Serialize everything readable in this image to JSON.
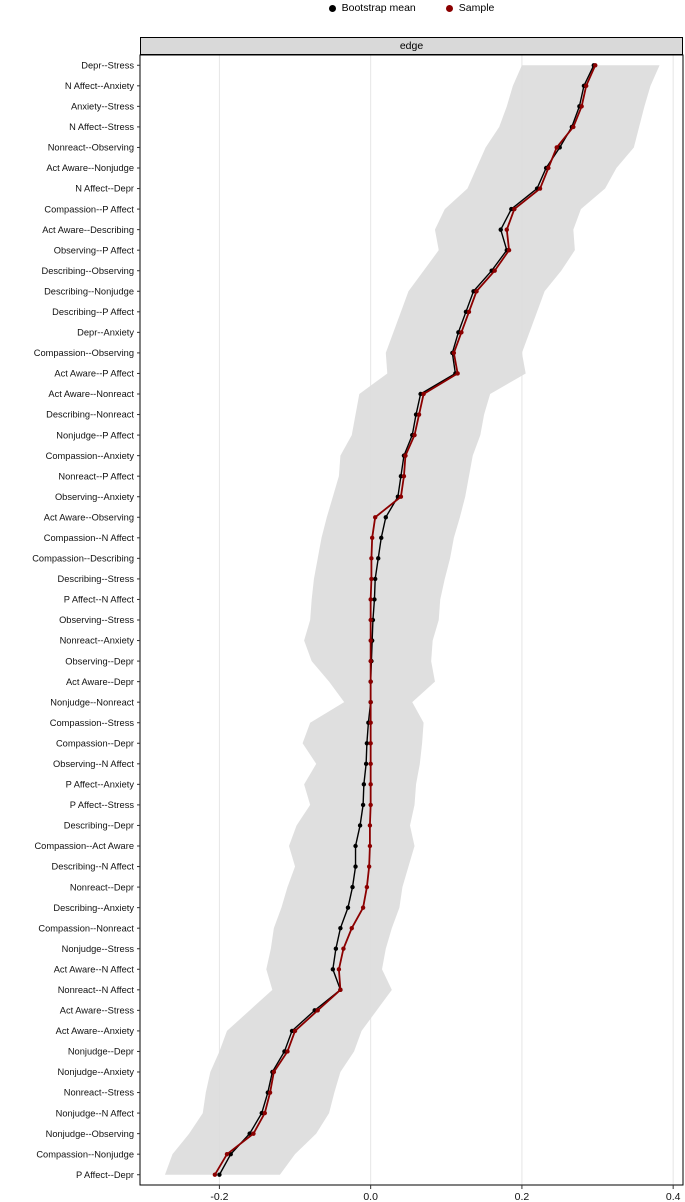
{
  "legend": {
    "items": [
      {
        "label": "Bootstrap mean",
        "color": "#000000"
      },
      {
        "label": "Sample",
        "color": "#8B0000"
      }
    ]
  },
  "panel": {
    "header": "edge"
  },
  "chart_data": {
    "type": "line",
    "orientation": "horizontal",
    "title": "edge",
    "xlabel": "",
    "ylabel": "",
    "legend_position": "top",
    "grid": true,
    "x_ticks": [
      -0.2,
      0.0,
      0.2,
      0.4
    ],
    "xlim": [
      -0.305,
      0.413
    ],
    "band_color": "#dcdcdc",
    "series": [
      {
        "name": "Bootstrap mean",
        "color": "#000000",
        "value_key": "boot"
      },
      {
        "name": "Sample",
        "color": "#8B0000",
        "value_key": "sample"
      }
    ],
    "rows": [
      {
        "label": "Depr--Stress",
        "boot": 0.295,
        "sample": 0.297,
        "ci": [
          0.2,
          0.382
        ]
      },
      {
        "label": "N Affect--Anxiety",
        "boot": 0.282,
        "sample": 0.285,
        "ci": [
          0.188,
          0.37
        ]
      },
      {
        "label": "Anxiety--Stress",
        "boot": 0.276,
        "sample": 0.279,
        "ci": [
          0.18,
          0.362
        ]
      },
      {
        "label": "N Affect--Stress",
        "boot": 0.266,
        "sample": 0.268,
        "ci": [
          0.17,
          0.355
        ]
      },
      {
        "label": "Nonreact--Observing",
        "boot": 0.25,
        "sample": 0.246,
        "ci": [
          0.152,
          0.348
        ]
      },
      {
        "label": "Act Aware--Nonjudge",
        "boot": 0.232,
        "sample": 0.235,
        "ci": [
          0.14,
          0.325
        ]
      },
      {
        "label": "N Affect--Depr",
        "boot": 0.22,
        "sample": 0.224,
        "ci": [
          0.128,
          0.31
        ]
      },
      {
        "label": "Compassion--P Affect",
        "boot": 0.186,
        "sample": 0.19,
        "ci": [
          0.098,
          0.278
        ]
      },
      {
        "label": "Act Aware--Describing",
        "boot": 0.172,
        "sample": 0.18,
        "ci": [
          0.085,
          0.268
        ]
      },
      {
        "label": "Observing--P Affect",
        "boot": 0.18,
        "sample": 0.183,
        "ci": [
          0.09,
          0.27
        ]
      },
      {
        "label": "Describing--Observing",
        "boot": 0.16,
        "sample": 0.164,
        "ci": [
          0.07,
          0.252
        ]
      },
      {
        "label": "Describing--Nonjudge",
        "boot": 0.136,
        "sample": 0.14,
        "ci": [
          0.05,
          0.23
        ]
      },
      {
        "label": "Describing--P Affect",
        "boot": 0.126,
        "sample": 0.13,
        "ci": [
          0.04,
          0.22
        ]
      },
      {
        "label": "Depr--Anxiety",
        "boot": 0.116,
        "sample": 0.12,
        "ci": [
          0.03,
          0.21
        ]
      },
      {
        "label": "Compassion--Observing",
        "boot": 0.108,
        "sample": 0.11,
        "ci": [
          0.02,
          0.2
        ]
      },
      {
        "label": "Act Aware--P Affect",
        "boot": 0.112,
        "sample": 0.115,
        "ci": [
          0.022,
          0.205
        ]
      },
      {
        "label": "Act Aware--Nonreact",
        "boot": 0.066,
        "sample": 0.07,
        "ci": [
          -0.015,
          0.158
        ]
      },
      {
        "label": "Describing--Nonreact",
        "boot": 0.06,
        "sample": 0.064,
        "ci": [
          -0.02,
          0.15
        ]
      },
      {
        "label": "Nonjudge--P Affect",
        "boot": 0.055,
        "sample": 0.058,
        "ci": [
          -0.025,
          0.145
        ]
      },
      {
        "label": "Compassion--Anxiety",
        "boot": 0.044,
        "sample": 0.046,
        "ci": [
          -0.04,
          0.135
        ]
      },
      {
        "label": "Nonreact--P Affect",
        "boot": 0.04,
        "sample": 0.044,
        "ci": [
          -0.042,
          0.13
        ]
      },
      {
        "label": "Observing--Anxiety",
        "boot": 0.036,
        "sample": 0.04,
        "ci": [
          -0.05,
          0.125
        ]
      },
      {
        "label": "Act Aware--Observing",
        "boot": 0.02,
        "sample": 0.006,
        "ci": [
          -0.058,
          0.118
        ]
      },
      {
        "label": "Compassion--N Affect",
        "boot": 0.014,
        "sample": 0.002,
        "ci": [
          -0.065,
          0.11
        ]
      },
      {
        "label": "Compassion--Describing",
        "boot": 0.01,
        "sample": 0.001,
        "ci": [
          -0.07,
          0.105
        ]
      },
      {
        "label": "Describing--Stress",
        "boot": 0.006,
        "sample": 0.001,
        "ci": [
          -0.075,
          0.098
        ]
      },
      {
        "label": "P Affect--N Affect",
        "boot": 0.005,
        "sample": 0.0,
        "ci": [
          -0.078,
          0.092
        ]
      },
      {
        "label": "Observing--Stress",
        "boot": 0.003,
        "sample": 0.0,
        "ci": [
          -0.08,
          0.09
        ]
      },
      {
        "label": "Nonreact--Anxiety",
        "boot": 0.002,
        "sample": 0.0,
        "ci": [
          -0.088,
          0.082
        ]
      },
      {
        "label": "Observing--Depr",
        "boot": 0.001,
        "sample": 0.0,
        "ci": [
          -0.078,
          0.08
        ]
      },
      {
        "label": "Act Aware--Depr",
        "boot": 0.0,
        "sample": 0.0,
        "ci": [
          -0.055,
          0.085
        ]
      },
      {
        "label": "Nonjudge--Nonreact",
        "boot": 0.0,
        "sample": 0.0,
        "ci": [
          -0.035,
          0.055
        ]
      },
      {
        "label": "Compassion--Stress",
        "boot": -0.003,
        "sample": 0.0,
        "ci": [
          -0.08,
          0.07
        ]
      },
      {
        "label": "Compassion--Depr",
        "boot": -0.005,
        "sample": 0.0,
        "ci": [
          -0.09,
          0.068
        ]
      },
      {
        "label": "Observing--N Affect",
        "boot": -0.006,
        "sample": 0.0,
        "ci": [
          -0.072,
          0.065
        ]
      },
      {
        "label": "P Affect--Anxiety",
        "boot": -0.009,
        "sample": 0.0,
        "ci": [
          -0.088,
          0.06
        ]
      },
      {
        "label": "P Affect--Stress",
        "boot": -0.01,
        "sample": 0.0,
        "ci": [
          -0.08,
          0.058
        ]
      },
      {
        "label": "Describing--Depr",
        "boot": -0.014,
        "sample": -0.001,
        "ci": [
          -0.098,
          0.052
        ]
      },
      {
        "label": "Compassion--Act Aware",
        "boot": -0.02,
        "sample": -0.001,
        "ci": [
          -0.108,
          0.058
        ]
      },
      {
        "label": "Describing--N Affect",
        "boot": -0.02,
        "sample": -0.002,
        "ci": [
          -0.1,
          0.05
        ]
      },
      {
        "label": "Nonreact--Depr",
        "boot": -0.024,
        "sample": -0.005,
        "ci": [
          -0.11,
          0.042
        ]
      },
      {
        "label": "Describing--Anxiety",
        "boot": -0.03,
        "sample": -0.01,
        "ci": [
          -0.118,
          0.038
        ]
      },
      {
        "label": "Compassion--Nonreact",
        "boot": -0.04,
        "sample": -0.025,
        "ci": [
          -0.128,
          0.028
        ]
      },
      {
        "label": "Nonjudge--Stress",
        "boot": -0.046,
        "sample": -0.036,
        "ci": [
          -0.132,
          0.02
        ]
      },
      {
        "label": "Act Aware--N Affect",
        "boot": -0.05,
        "sample": -0.042,
        "ci": [
          -0.138,
          0.015
        ]
      },
      {
        "label": "Nonreact--N Affect",
        "boot": -0.04,
        "sample": -0.04,
        "ci": [
          -0.13,
          0.028
        ]
      },
      {
        "label": "Act Aware--Stress",
        "boot": -0.074,
        "sample": -0.07,
        "ci": [
          -0.16,
          0.008
        ]
      },
      {
        "label": "Act Aware--Anxiety",
        "boot": -0.104,
        "sample": -0.1,
        "ci": [
          -0.19,
          -0.012
        ]
      },
      {
        "label": "Nonjudge--Depr",
        "boot": -0.114,
        "sample": -0.11,
        "ci": [
          -0.2,
          -0.022
        ]
      },
      {
        "label": "Nonjudge--Anxiety",
        "boot": -0.13,
        "sample": -0.128,
        "ci": [
          -0.212,
          -0.04
        ]
      },
      {
        "label": "Nonreact--Stress",
        "boot": -0.136,
        "sample": -0.133,
        "ci": [
          -0.218,
          -0.048
        ]
      },
      {
        "label": "Nonjudge--N Affect",
        "boot": -0.144,
        "sample": -0.14,
        "ci": [
          -0.222,
          -0.055
        ]
      },
      {
        "label": "Nonjudge--Observing",
        "boot": -0.16,
        "sample": -0.155,
        "ci": [
          -0.24,
          -0.072
        ]
      },
      {
        "label": "Compassion--Nonjudge",
        "boot": -0.185,
        "sample": -0.19,
        "ci": [
          -0.262,
          -0.1
        ]
      },
      {
        "label": "P Affect--Depr",
        "boot": -0.2,
        "sample": -0.206,
        "ci": [
          -0.272,
          -0.12
        ]
      }
    ]
  }
}
